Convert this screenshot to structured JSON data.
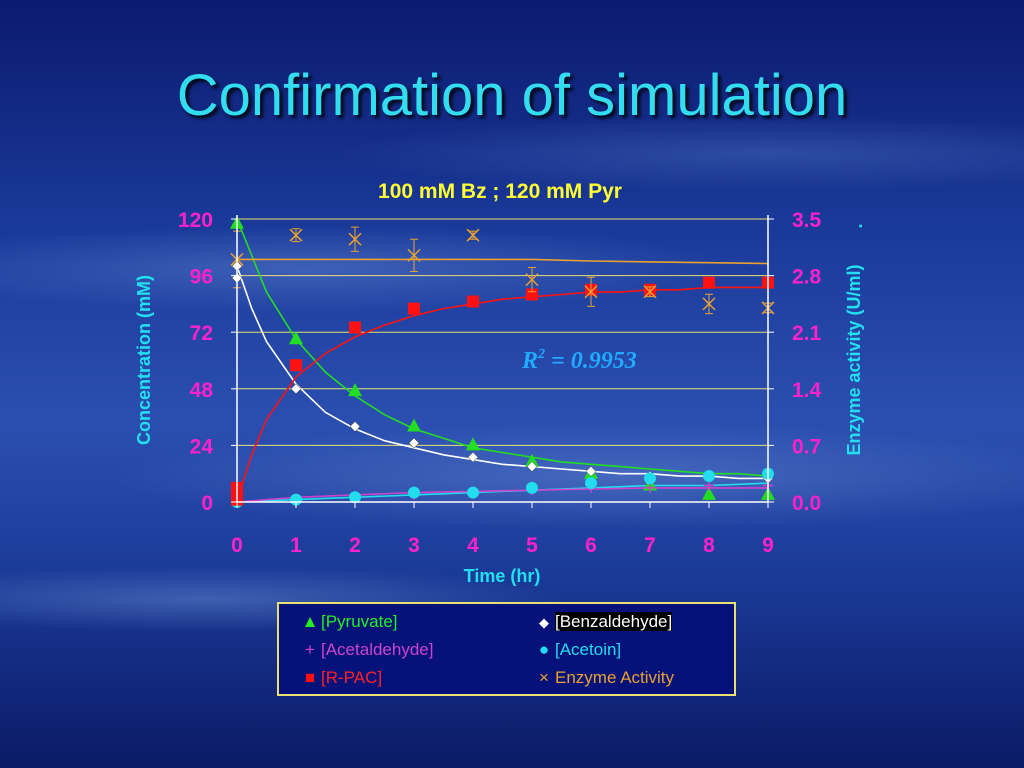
{
  "slide": {
    "title": "Confirmation of simulation"
  },
  "chart_data": {
    "type": "scatter",
    "title": "100 mM Bz ; 120 mM Pyr",
    "xlabel": "Time (hr)",
    "ylabel": "Concentration (mM)",
    "y2label": "Enzyme activity (U/ml)",
    "y2label_suffix": ".",
    "annotation": {
      "r2_prefix": "R",
      "r2_sup": "2",
      "r2_value": " = 0.9953"
    },
    "xlim": [
      0,
      9
    ],
    "ylim": [
      0,
      120
    ],
    "y2lim": [
      0.0,
      3.5
    ],
    "xticks": [
      "0",
      "1",
      "2",
      "3",
      "4",
      "5",
      "6",
      "7",
      "8",
      "9"
    ],
    "yticks": [
      "0",
      "24",
      "48",
      "72",
      "96",
      "120"
    ],
    "y2ticks": [
      "0.0",
      "0.7",
      "1.4",
      "2.1",
      "2.8",
      "3.5"
    ],
    "grid": true,
    "legend_position": "bottom",
    "colors": {
      "pyruvate": "#22dd22",
      "benzaldehyde": "#ffffff",
      "acetaldehyde": "#cc44cc",
      "acetoin": "#22ddee",
      "rpac": "#ff1111",
      "enzyme": "#e8a030",
      "axis_text": "#ff22cc",
      "axis_title": "#22e0f0",
      "title": "#ffff33",
      "grid": "#e8e070"
    },
    "series": [
      {
        "name": "[Pyruvate]",
        "marker": "triangle",
        "x": [
          0,
          1,
          2,
          3,
          4,
          5,
          6,
          7,
          8,
          9
        ],
        "y": [
          118,
          69,
          47,
          32,
          24,
          17,
          12,
          7,
          3,
          3
        ]
      },
      {
        "name": "[Benzaldehyde]",
        "marker": "diamond",
        "x": [
          0,
          0,
          1,
          2,
          3,
          4,
          5,
          6,
          7,
          8,
          9
        ],
        "y": [
          100,
          95,
          48,
          32,
          25,
          19,
          15,
          13,
          11,
          11,
          10
        ]
      },
      {
        "name": "[Acetaldehyde]",
        "marker": "plus",
        "x": [
          0,
          1,
          2,
          3,
          4,
          5,
          6,
          7,
          8,
          9
        ],
        "y": [
          0,
          1,
          2,
          3,
          4,
          5,
          6,
          6,
          7,
          7
        ]
      },
      {
        "name": "[Acetoin]",
        "marker": "circle",
        "x": [
          0,
          1,
          2,
          3,
          4,
          5,
          6,
          7,
          8,
          9
        ],
        "y": [
          0,
          1,
          2,
          4,
          4,
          6,
          8,
          10,
          11,
          12
        ]
      },
      {
        "name": "[R-PAC]",
        "marker": "square",
        "x": [
          0,
          0,
          1,
          2,
          3,
          4,
          5,
          6,
          7,
          8,
          9
        ],
        "y": [
          1,
          6,
          58,
          74,
          82,
          85,
          88,
          90,
          90,
          93,
          93
        ]
      },
      {
        "name": "Enzyme Activity",
        "marker": "x",
        "axis": "y2",
        "x": [
          0,
          1,
          2,
          3,
          4,
          5,
          6,
          7,
          8,
          9
        ],
        "y": [
          3.0,
          3.3,
          3.25,
          3.05,
          3.3,
          2.75,
          2.6,
          2.6,
          2.45,
          2.4
        ],
        "err": [
          0.35,
          0.08,
          0.15,
          0.2,
          0.05,
          0.15,
          0.18,
          0.06,
          0.12,
          0.06
        ]
      }
    ],
    "fits": {
      "pyruvate": {
        "x": [
          0,
          0.5,
          1,
          1.5,
          2,
          2.5,
          3,
          3.5,
          4,
          4.5,
          5,
          5.5,
          6,
          6.5,
          7,
          7.5,
          8,
          8.5,
          9
        ],
        "y": [
          120,
          89,
          69,
          55,
          45,
          37,
          31,
          27,
          23,
          21,
          19,
          17,
          16,
          15,
          14,
          13,
          12,
          12,
          11
        ]
      },
      "benzaldehyde": {
        "x": [
          0,
          0.25,
          0.5,
          1,
          1.5,
          2,
          2.5,
          3,
          3.5,
          4,
          4.5,
          5,
          5.5,
          6,
          6.5,
          7,
          7.5,
          8,
          8.5,
          9
        ],
        "y": [
          100,
          82,
          68,
          50,
          38,
          31,
          26,
          23,
          20,
          18,
          16,
          15,
          14,
          13,
          12,
          12,
          11,
          11,
          10,
          10
        ]
      },
      "rpac": {
        "x": [
          0,
          0.25,
          0.5,
          1,
          1.5,
          2,
          2.5,
          3,
          3.5,
          4,
          4.5,
          5,
          5.5,
          6,
          6.5,
          7,
          7.5,
          8,
          8.5,
          9
        ],
        "y": [
          1,
          20,
          35,
          53,
          63,
          70,
          75,
          79,
          82,
          84,
          86,
          87,
          88,
          89,
          89,
          90,
          90,
          91,
          91,
          91
        ]
      },
      "acetoin": {
        "x": [
          0,
          1,
          2,
          3,
          4,
          5,
          6,
          7,
          8,
          9
        ],
        "y": [
          0,
          1,
          2,
          3,
          4,
          5,
          6,
          7,
          7,
          8
        ]
      },
      "acetaldehyde": {
        "x": [
          0,
          1,
          2,
          3,
          4,
          5,
          6,
          7,
          8,
          9
        ],
        "y": [
          0,
          2,
          3,
          4,
          4.5,
          5,
          5.5,
          6,
          6,
          6
        ]
      },
      "enzyme": {
        "x": [
          0,
          1,
          2,
          3,
          4,
          5,
          6,
          7,
          8,
          9
        ],
        "y": [
          3.0,
          3.0,
          3.0,
          3.0,
          3.0,
          3.0,
          2.98,
          2.97,
          2.96,
          2.95
        ]
      }
    }
  }
}
